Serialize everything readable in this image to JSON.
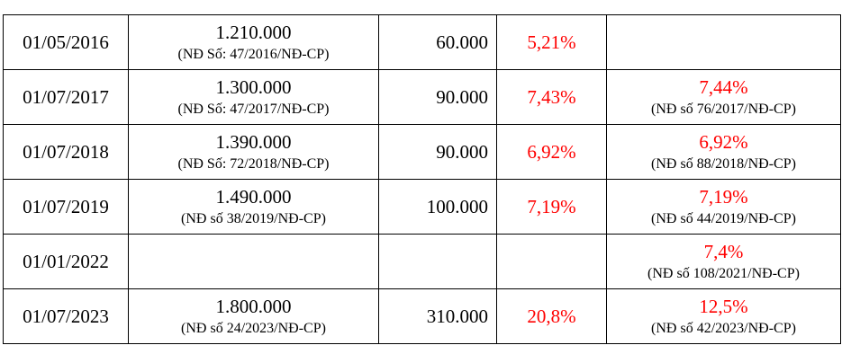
{
  "rows": [
    {
      "date": "01/05/2016",
      "wage": "1.210.000",
      "wage_decree": "(NĐ Số: 47/2016/NĐ-CP)",
      "increase": "60.000",
      "percent": "5,21%",
      "ref_percent": "",
      "ref_decree": ""
    },
    {
      "date": "01/07/2017",
      "wage": "1.300.000",
      "wage_decree": "(NĐ Số: 47/2017/NĐ-CP)",
      "increase": "90.000",
      "percent": "7,43%",
      "ref_percent": "7,44%",
      "ref_decree": "(NĐ số 76/2017/NĐ-CP)"
    },
    {
      "date": "01/07/2018",
      "wage": "1.390.000",
      "wage_decree": "(NĐ Số: 72/2018/NĐ-CP)",
      "increase": "90.000",
      "percent": "6,92%",
      "ref_percent": "6,92%",
      "ref_decree": "(NĐ số 88/2018/NĐ-CP)"
    },
    {
      "date": "01/07/2019",
      "wage": "1.490.000",
      "wage_decree": "(NĐ số 38/2019/NĐ-CP)",
      "increase": "100.000",
      "percent": "7,19%",
      "ref_percent": "7,19%",
      "ref_decree": "(NĐ số 44/2019/NĐ-CP)"
    },
    {
      "date": "01/01/2022",
      "wage": "",
      "wage_decree": "",
      "increase": "",
      "percent": "",
      "ref_percent": "7,4%",
      "ref_decree": "(NĐ số 108/2021/NĐ-CP)"
    },
    {
      "date": "01/07/2023",
      "wage": "1.800.000",
      "wage_decree": "(NĐ số 24/2023/NĐ-CP)",
      "increase": "310.000",
      "percent": "20,8%",
      "ref_percent": "12,5%",
      "ref_decree": "(NĐ số 42/2023/NĐ-CP)"
    }
  ],
  "colors": {
    "highlight": "#ff0000",
    "text": "#000000",
    "border": "#000000"
  }
}
